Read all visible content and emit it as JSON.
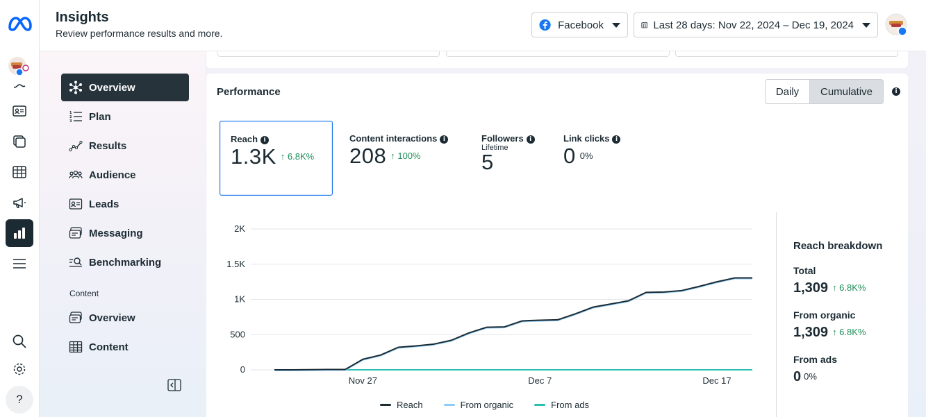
{
  "header": {
    "title": "Insights",
    "subtitle": "Review performance results and more.",
    "platform_label": "Facebook",
    "date_range_label": "Last 28 days: Nov 22, 2024 – Dec 19, 2024"
  },
  "nav": {
    "items": [
      {
        "label": "Overview",
        "icon": "overview-icon",
        "active": true
      },
      {
        "label": "Plan",
        "icon": "plan-icon"
      },
      {
        "label": "Results",
        "icon": "results-icon"
      },
      {
        "label": "Audience",
        "icon": "audience-icon"
      },
      {
        "label": "Leads",
        "icon": "leads-icon"
      },
      {
        "label": "Messaging",
        "icon": "messaging-icon"
      },
      {
        "label": "Benchmarking",
        "icon": "benchmarking-icon"
      }
    ],
    "content_section": "Content",
    "content_items": [
      {
        "label": "Overview",
        "icon": "content-overview-icon"
      },
      {
        "label": "Content",
        "icon": "content-table-icon"
      }
    ]
  },
  "performance": {
    "title": "Performance",
    "toggle": [
      "Daily",
      "Cumulative"
    ],
    "toggle_selected": "Cumulative",
    "metrics": [
      {
        "label": "Reach",
        "value": "1.3K",
        "change": "↑ 6.8K%"
      },
      {
        "label": "Content interactions",
        "value": "208",
        "change": "↑ 100%"
      },
      {
        "label": "Followers",
        "sublabel": "Lifetime",
        "value": "5"
      },
      {
        "label": "Link clicks",
        "value": "0",
        "change": "0%"
      }
    ]
  },
  "breakdown": {
    "title": "Reach breakdown",
    "total_label": "Total",
    "total_value": "1,309",
    "total_change": "↑ 6.8K%",
    "organic_label": "From organic",
    "organic_value": "1,309",
    "organic_change": "↑ 6.8K%",
    "ads_label": "From ads",
    "ads_value": "0",
    "ads_change": "0%"
  },
  "chart_data": {
    "type": "line",
    "x": [
      "Nov 22",
      "Nov 23",
      "Nov 24",
      "Nov 25",
      "Nov 26",
      "Nov 27",
      "Nov 28",
      "Nov 29",
      "Nov 30",
      "Dec 1",
      "Dec 2",
      "Dec 3",
      "Dec 4",
      "Dec 5",
      "Dec 6",
      "Dec 7",
      "Dec 8",
      "Dec 9",
      "Dec 10",
      "Dec 11",
      "Dec 12",
      "Dec 13",
      "Dec 14",
      "Dec 15",
      "Dec 16",
      "Dec 17",
      "Dec 18",
      "Dec 19"
    ],
    "x_tick_labels": [
      "Nov 27",
      "Dec 7",
      "Dec 17"
    ],
    "y_tick_labels": [
      "0",
      "500",
      "1K",
      "1.5K",
      "2K"
    ],
    "ylim": [
      0,
      2000
    ],
    "series": [
      {
        "name": "Reach",
        "color": "#1c2b33",
        "values": [
          0,
          0,
          3,
          5,
          5,
          150,
          210,
          320,
          340,
          365,
          420,
          525,
          605,
          610,
          695,
          705,
          710,
          795,
          890,
          935,
          980,
          1100,
          1105,
          1125,
          1185,
          1250,
          1305,
          1305
        ]
      },
      {
        "name": "From organic",
        "color": "#8ecbf6",
        "values": [
          0,
          0,
          3,
          5,
          5,
          150,
          210,
          320,
          340,
          365,
          420,
          525,
          605,
          610,
          695,
          705,
          710,
          795,
          890,
          935,
          980,
          1100,
          1105,
          1125,
          1185,
          1250,
          1305,
          1305
        ]
      },
      {
        "name": "From ads",
        "color": "#2abfb0",
        "values": [
          0,
          0,
          0,
          0,
          0,
          0,
          0,
          0,
          0,
          0,
          0,
          0,
          0,
          0,
          0,
          0,
          0,
          0,
          0,
          0,
          0,
          0,
          0,
          0,
          0,
          0,
          0,
          0
        ]
      }
    ],
    "grid": true,
    "legend": "bottom"
  }
}
